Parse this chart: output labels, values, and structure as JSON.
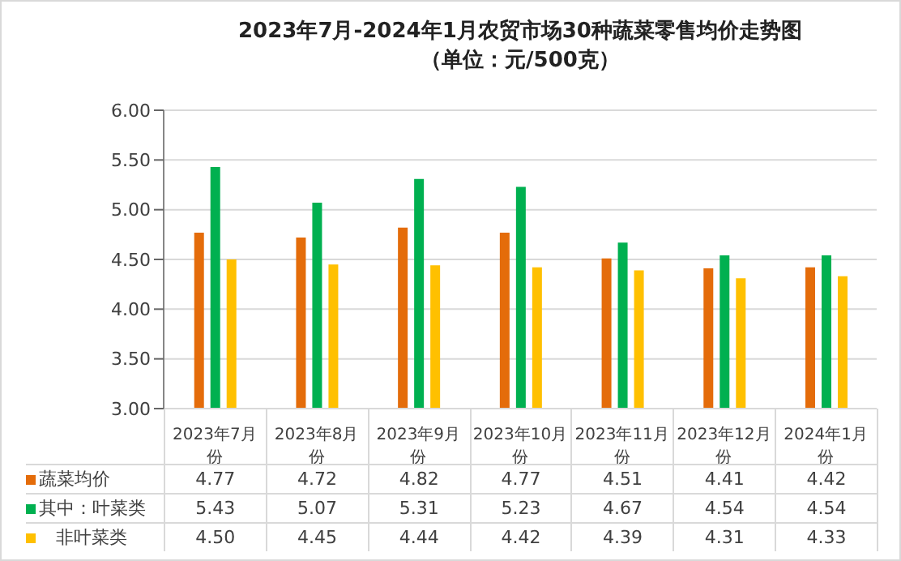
{
  "chart_data": {
    "type": "bar",
    "title": "2023年7月-2024年1月农贸市场30种蔬菜零售均价走势图",
    "subtitle": "（单位：元/500克）",
    "categories": [
      "2023年7月份",
      "2023年8月份",
      "2023年9月份",
      "2023年10月份",
      "2023年11月份",
      "2023年12月份",
      "2024年1月份"
    ],
    "series": [
      {
        "name": "蔬菜均价",
        "color": "#e46c0a",
        "values": [
          4.77,
          4.72,
          4.82,
          4.77,
          4.51,
          4.41,
          4.42
        ],
        "value_labels": [
          "4.77",
          "4.72",
          "4.82",
          "4.77",
          "4.51",
          "4.41",
          "4.42"
        ]
      },
      {
        "name": "其中：叶菜类",
        "color": "#00b050",
        "values": [
          5.43,
          5.07,
          5.31,
          5.23,
          4.67,
          4.54,
          4.54
        ],
        "value_labels": [
          "5.43",
          "5.07",
          "5.31",
          "5.23",
          "4.67",
          "4.54",
          "4.54"
        ]
      },
      {
        "name": "   非叶菜类",
        "color": "#ffc000",
        "values": [
          4.5,
          4.45,
          4.44,
          4.42,
          4.39,
          4.31,
          4.33
        ],
        "value_labels": [
          "4.50",
          "4.45",
          "4.44",
          "4.42",
          "4.39",
          "4.31",
          "4.33"
        ]
      }
    ],
    "ylim": [
      3,
      6
    ],
    "yticks": [
      {
        "value": 3,
        "label": "3.00"
      },
      {
        "value": 3.5,
        "label": "3.50"
      },
      {
        "value": 4,
        "label": "4.00"
      },
      {
        "value": 4.5,
        "label": "4.50"
      },
      {
        "value": 5,
        "label": "5.00"
      },
      {
        "value": 5.5,
        "label": "5.50"
      },
      {
        "value": 6,
        "label": "6.00"
      }
    ],
    "grid": "y",
    "legend": "bottom"
  }
}
